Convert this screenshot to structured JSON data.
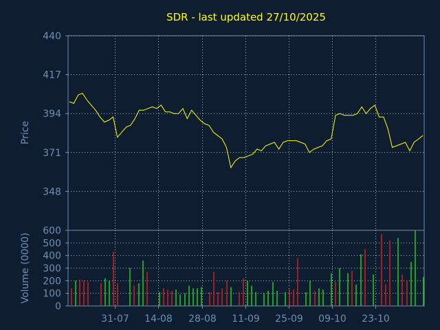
{
  "colors": {
    "background": "#0f1d30",
    "axis_text": "#6e8fb4",
    "title": "#ffff00",
    "price_line": "#ffff00",
    "volume_up": "#22cc22",
    "volume_down": "#cc2222"
  },
  "chart_data": [
    {
      "type": "line",
      "title": "SDR - last updated 27/10/2025",
      "ylabel": "Price",
      "ylim": [
        325,
        440
      ],
      "yticks": [
        440,
        417,
        394,
        371,
        348
      ],
      "xticks": [
        "31-07",
        "14-08",
        "28-08",
        "11-09",
        "25-09",
        "09-10",
        "23-10"
      ],
      "xtick_index": [
        10,
        20,
        30,
        40,
        50,
        60,
        70
      ],
      "grid": true,
      "values": [
        401,
        400,
        405,
        406,
        402,
        399,
        396,
        392,
        389,
        390,
        392,
        380,
        383,
        386,
        387,
        391,
        396,
        396,
        397,
        398,
        397,
        399,
        395,
        395,
        394,
        394,
        397,
        391,
        396,
        393,
        390,
        388,
        387,
        383,
        381,
        379,
        374,
        362,
        366,
        368,
        368,
        369,
        370,
        373,
        372,
        375,
        376,
        377,
        373,
        377,
        378,
        378,
        378,
        377,
        376,
        371,
        373,
        374,
        375,
        378,
        379,
        393,
        394,
        393,
        393,
        393,
        394,
        398,
        394,
        397,
        399,
        392,
        392,
        385,
        374,
        375,
        376,
        377,
        372,
        377,
        379,
        381
      ]
    },
    {
      "type": "bar",
      "ylabel": "Volume (0000)",
      "ylim": [
        0,
        600
      ],
      "yticks": [
        600,
        500,
        400,
        300,
        200,
        100,
        0
      ],
      "grid": true,
      "values": [
        140,
        200,
        210,
        200,
        190,
        0,
        0,
        180,
        220,
        200,
        430,
        180,
        0,
        0,
        300,
        160,
        180,
        360,
        270,
        0,
        0,
        110,
        140,
        130,
        120,
        130,
        90,
        100,
        160,
        140,
        140,
        150,
        0,
        110,
        270,
        110,
        140,
        200,
        150,
        0,
        110,
        220,
        200,
        160,
        110,
        0,
        100,
        120,
        190,
        120,
        0,
        110,
        130,
        130,
        380,
        0,
        110,
        200,
        120,
        140,
        130,
        0,
        260,
        190,
        300,
        0,
        260,
        280,
        170,
        410,
        450,
        0,
        250,
        0,
        570,
        170,
        520,
        0,
        540,
        250,
        200,
        350,
        600,
        0,
        230
      ],
      "up": [
        0,
        1,
        0,
        0,
        0,
        0,
        0,
        0,
        1,
        1,
        0,
        0,
        0,
        0,
        1,
        0,
        1,
        1,
        0,
        0,
        0,
        1,
        0,
        0,
        0,
        1,
        1,
        1,
        1,
        1,
        1,
        1,
        0,
        0,
        0,
        0,
        0,
        0,
        1,
        0,
        0,
        0,
        1,
        1,
        1,
        0,
        1,
        1,
        1,
        1,
        0,
        1,
        0,
        0,
        0,
        0,
        1,
        1,
        0,
        1,
        1,
        0,
        1,
        0,
        1,
        0,
        1,
        0,
        1,
        1,
        0,
        0,
        1,
        0,
        0,
        0,
        0,
        0,
        1,
        0,
        0,
        1,
        1,
        0,
        1
      ]
    }
  ]
}
